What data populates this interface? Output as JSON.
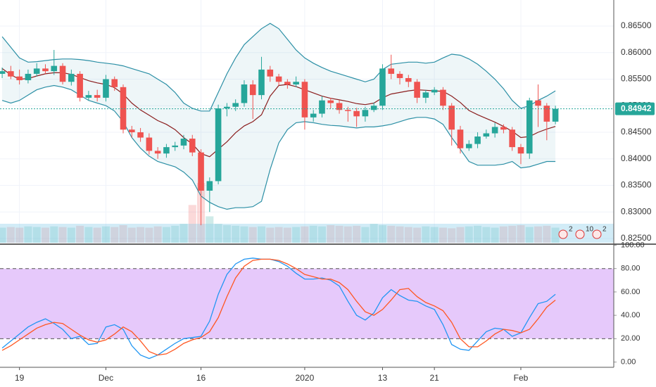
{
  "chart_data": [
    {
      "type": "candlestick",
      "open": [
        0.856,
        0.8565,
        0.8555,
        0.8548,
        0.856,
        0.857,
        0.8565,
        0.8575,
        0.8545,
        0.856,
        0.8515,
        0.852,
        0.8515,
        0.855,
        0.8535,
        0.8455,
        0.845,
        0.844,
        0.8415,
        0.841,
        0.8422,
        0.8425,
        0.8438,
        0.8412,
        0.834,
        0.8358,
        0.8495,
        0.8498,
        0.8505,
        0.854,
        0.852,
        0.8568,
        0.8555,
        0.8545,
        0.854,
        0.8545,
        0.8478,
        0.8485,
        0.851,
        0.8505,
        0.8492,
        0.849,
        0.848,
        0.8492,
        0.85,
        0.857,
        0.856,
        0.8552,
        0.8545,
        0.8515,
        0.8525,
        0.853,
        0.85,
        0.8455,
        0.842,
        0.8428,
        0.8442,
        0.8448,
        0.846,
        0.8455,
        0.8422,
        0.841,
        0.851,
        0.85,
        0.847
      ],
      "high": [
        0.8572,
        0.8575,
        0.8568,
        0.8568,
        0.858,
        0.8578,
        0.8605,
        0.858,
        0.8568,
        0.8565,
        0.8528,
        0.853,
        0.8558,
        0.8555,
        0.854,
        0.8462,
        0.8458,
        0.8448,
        0.8422,
        0.8428,
        0.8432,
        0.8445,
        0.8445,
        0.8418,
        0.8365,
        0.8502,
        0.8505,
        0.8512,
        0.8548,
        0.8548,
        0.8592,
        0.8575,
        0.856,
        0.855,
        0.8555,
        0.855,
        0.8492,
        0.8518,
        0.8515,
        0.851,
        0.8498,
        0.8496,
        0.8498,
        0.8506,
        0.8578,
        0.8596,
        0.8565,
        0.8558,
        0.855,
        0.853,
        0.8535,
        0.8535,
        0.8505,
        0.8462,
        0.8435,
        0.845,
        0.8455,
        0.8468,
        0.8465,
        0.846,
        0.8428,
        0.8515,
        0.854,
        0.8505,
        0.85
      ],
      "low": [
        0.8552,
        0.855,
        0.854,
        0.8542,
        0.8555,
        0.856,
        0.8558,
        0.854,
        0.8538,
        0.8508,
        0.851,
        0.8508,
        0.8508,
        0.8528,
        0.8448,
        0.844,
        0.8432,
        0.8408,
        0.84,
        0.8402,
        0.8415,
        0.8418,
        0.8405,
        0.8275,
        0.83,
        0.8352,
        0.848,
        0.849,
        0.8498,
        0.8475,
        0.8512,
        0.8545,
        0.8538,
        0.8532,
        0.8535,
        0.8455,
        0.847,
        0.8478,
        0.8495,
        0.8485,
        0.847,
        0.846,
        0.847,
        0.8488,
        0.8492,
        0.855,
        0.854,
        0.8535,
        0.8505,
        0.8505,
        0.852,
        0.8492,
        0.8425,
        0.841,
        0.8415,
        0.842,
        0.8438,
        0.844,
        0.8448,
        0.8415,
        0.839,
        0.84,
        0.846,
        0.8435,
        0.8465
      ],
      "close": [
        0.8565,
        0.8555,
        0.8548,
        0.856,
        0.857,
        0.8565,
        0.8575,
        0.8545,
        0.856,
        0.8515,
        0.852,
        0.8515,
        0.855,
        0.8535,
        0.8455,
        0.845,
        0.844,
        0.8415,
        0.841,
        0.8422,
        0.8425,
        0.8438,
        0.8412,
        0.834,
        0.8358,
        0.8495,
        0.8498,
        0.8505,
        0.854,
        0.852,
        0.8568,
        0.8555,
        0.8545,
        0.854,
        0.8545,
        0.8478,
        0.8485,
        0.851,
        0.8505,
        0.8492,
        0.849,
        0.848,
        0.8492,
        0.85,
        0.857,
        0.856,
        0.8552,
        0.8545,
        0.8515,
        0.8525,
        0.853,
        0.85,
        0.8455,
        0.842,
        0.8428,
        0.8442,
        0.8448,
        0.846,
        0.8455,
        0.8422,
        0.841,
        0.851,
        0.85,
        0.847,
        0.84942
      ],
      "bollinger": {
        "upper": [
          0.863,
          0.861,
          0.859,
          0.8582,
          0.8583,
          0.8585,
          0.8587,
          0.8588,
          0.8588,
          0.8587,
          0.8585,
          0.8582,
          0.858,
          0.8578,
          0.8575,
          0.857,
          0.8565,
          0.856,
          0.855,
          0.854,
          0.8525,
          0.8505,
          0.8495,
          0.849,
          0.849,
          0.8525,
          0.856,
          0.859,
          0.8615,
          0.863,
          0.8645,
          0.8655,
          0.8645,
          0.8625,
          0.8605,
          0.859,
          0.858,
          0.8572,
          0.8565,
          0.856,
          0.8555,
          0.855,
          0.8545,
          0.855,
          0.8568,
          0.8578,
          0.858,
          0.8582,
          0.8582,
          0.858,
          0.8582,
          0.859,
          0.8597,
          0.8595,
          0.8588,
          0.8578,
          0.8565,
          0.855,
          0.8532,
          0.851,
          0.8495,
          0.85,
          0.851,
          0.8518,
          0.8528
        ],
        "middle": [
          0.857,
          0.8558,
          0.855,
          0.8551,
          0.8556,
          0.856,
          0.8562,
          0.8562,
          0.8559,
          0.8553,
          0.8547,
          0.8543,
          0.854,
          0.8534,
          0.8522,
          0.8505,
          0.8492,
          0.8482,
          0.8472,
          0.8465,
          0.8455,
          0.844,
          0.8428,
          0.841,
          0.8404,
          0.8418,
          0.8432,
          0.8449,
          0.8462,
          0.847,
          0.8483,
          0.8518,
          0.8538,
          0.854,
          0.8536,
          0.853,
          0.8524,
          0.8518,
          0.8514,
          0.8511,
          0.8508,
          0.8504,
          0.8502,
          0.8505,
          0.8515,
          0.8522,
          0.8525,
          0.8528,
          0.853,
          0.8529,
          0.8528,
          0.8527,
          0.8518,
          0.8506,
          0.8491,
          0.8483,
          0.8476,
          0.8469,
          0.8461,
          0.8452,
          0.844,
          0.8442,
          0.845,
          0.8456,
          0.8461
        ],
        "lower": [
          0.851,
          0.8505,
          0.851,
          0.852,
          0.853,
          0.8535,
          0.8538,
          0.8535,
          0.853,
          0.852,
          0.851,
          0.8505,
          0.85,
          0.849,
          0.847,
          0.844,
          0.842,
          0.8405,
          0.8395,
          0.839,
          0.8385,
          0.8375,
          0.836,
          0.833,
          0.8318,
          0.831,
          0.8305,
          0.8308,
          0.8308,
          0.831,
          0.832,
          0.838,
          0.843,
          0.8455,
          0.8468,
          0.847,
          0.8468,
          0.8465,
          0.8463,
          0.8462,
          0.846,
          0.8458,
          0.846,
          0.846,
          0.8462,
          0.8465,
          0.847,
          0.8475,
          0.8478,
          0.8478,
          0.8475,
          0.8465,
          0.844,
          0.8418,
          0.8395,
          0.8388,
          0.8388,
          0.8388,
          0.839,
          0.8395,
          0.8383,
          0.8385,
          0.839,
          0.8395,
          0.8395
        ]
      },
      "volume": [
        24,
        25,
        24,
        26,
        25,
        24,
        26,
        25,
        24,
        27,
        25,
        24,
        26,
        25,
        28,
        24,
        25,
        24,
        26,
        25,
        27,
        30,
        60,
        95,
        42,
        30,
        28,
        27,
        26,
        25,
        26,
        24,
        25,
        24,
        25,
        26,
        27,
        26,
        28,
        27,
        26,
        27,
        25,
        30,
        28,
        27,
        26,
        25,
        24,
        26,
        25,
        24,
        23,
        25,
        26,
        27,
        25,
        24,
        26,
        27,
        28,
        25,
        26,
        27,
        24
      ],
      "ylim": [
        0.8242,
        0.8699
      ],
      "yticks": [
        {
          "value": 0.825,
          "label": "0.82500"
        },
        {
          "value": 0.83,
          "label": "0.83000"
        },
        {
          "value": 0.835,
          "label": "0.83500"
        },
        {
          "value": 0.84,
          "label": "0.84000"
        },
        {
          "value": 0.845,
          "label": "0.84500"
        },
        {
          "value": 0.85,
          "label": "0.85000"
        },
        {
          "value": 0.855,
          "label": "0.85500"
        },
        {
          "value": 0.86,
          "label": "0.86000"
        },
        {
          "value": 0.865,
          "label": "0.86500"
        }
      ],
      "last_price": {
        "value": 0.84942,
        "label": "0.84942"
      },
      "events": [
        "2",
        "10",
        "2"
      ],
      "up_color": "#26a69a",
      "down_color": "#ef5350",
      "band_color": "#2b8fa5",
      "middle_color": "#8b1e1e",
      "grid": true
    },
    {
      "type": "line",
      "categories": [
        null,
        null,
        "19",
        null,
        null,
        null,
        null,
        null,
        null,
        null,
        null,
        null,
        "Dec",
        null,
        null,
        null,
        null,
        null,
        null,
        null,
        null,
        null,
        null,
        "16",
        null,
        null,
        null,
        null,
        null,
        null,
        null,
        null,
        null,
        null,
        null,
        "2020",
        null,
        null,
        null,
        null,
        null,
        null,
        null,
        null,
        "13",
        null,
        null,
        null,
        null,
        null,
        "21",
        null,
        null,
        null,
        null,
        null,
        null,
        null,
        null,
        null,
        "Feb",
        null,
        null,
        null,
        null
      ],
      "series": [
        {
          "color": "#2196f3",
          "values": [
            12,
            18,
            24,
            30,
            34,
            37,
            33,
            28,
            20,
            22,
            15,
            16,
            30,
            32,
            28,
            14,
            6,
            3,
            6,
            11,
            16,
            20,
            21,
            22,
            35,
            58,
            75,
            84,
            88,
            89,
            88,
            88,
            86,
            82,
            76,
            71,
            71,
            72,
            70,
            65,
            52,
            40,
            36,
            42,
            55,
            62,
            57,
            53,
            52,
            48,
            45,
            32,
            15,
            11,
            10,
            18,
            26,
            29,
            28,
            22,
            25,
            38,
            50,
            52,
            58
          ]
        },
        {
          "color": "#ff5722",
          "values": [
            10,
            14,
            19,
            24,
            29,
            32,
            34,
            33,
            28,
            23,
            19,
            17,
            19,
            24,
            30,
            26,
            18,
            9,
            6,
            7,
            11,
            16,
            19,
            21,
            26,
            38,
            56,
            72,
            82,
            87,
            88,
            88,
            87,
            84,
            80,
            75,
            73,
            71,
            71,
            68,
            62,
            52,
            43,
            40,
            45,
            53,
            62,
            63,
            56,
            51,
            48,
            44,
            34,
            20,
            13,
            13,
            18,
            24,
            28,
            27,
            25,
            28,
            37,
            47,
            53
          ]
        }
      ],
      "ylim": [
        -4.5,
        100.3
      ],
      "yticks": [
        {
          "value": 0,
          "label": "0.00"
        },
        {
          "value": 20,
          "label": "20.00"
        },
        {
          "value": 40,
          "label": "40.00"
        },
        {
          "value": 60,
          "label": "60.00"
        },
        {
          "value": 80,
          "label": "80.00"
        },
        {
          "value": 100,
          "label": "100.00"
        }
      ],
      "bands": [
        20,
        80
      ],
      "band_fill": "#e6c9fb"
    }
  ]
}
